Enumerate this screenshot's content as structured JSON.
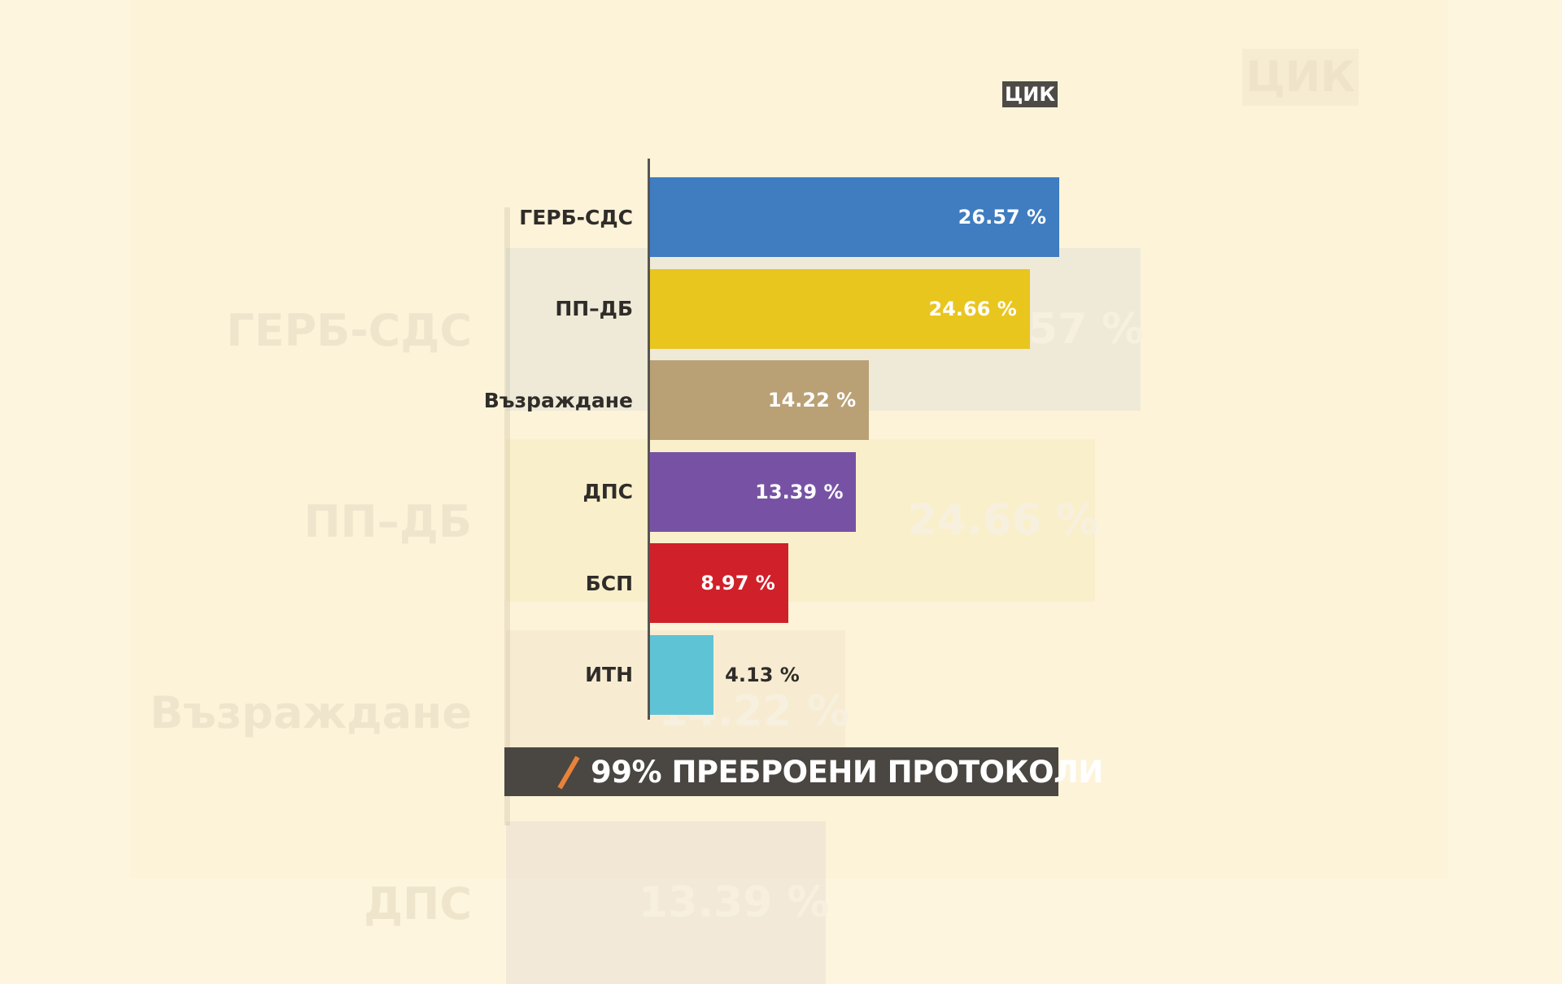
{
  "source_badge": "ЦИК",
  "footer": {
    "text": "99% ПРЕБРОЕНИ ПРОТОКОЛИ",
    "accent_color": "#e8823a"
  },
  "chart_data": {
    "type": "bar",
    "orientation": "horizontal",
    "categories": [
      "ГЕРБ-СДС",
      "ПП–ДБ",
      "Възраждане",
      "ДПС",
      "БСП",
      "ИТН"
    ],
    "values": [
      26.57,
      24.66,
      14.22,
      13.39,
      8.97,
      4.13
    ],
    "value_labels": [
      "26.57 %",
      "24.66 %",
      "14.22 %",
      "13.39 %",
      "8.97 %",
      "4.13 %"
    ],
    "colors": [
      "#3f7cc0",
      "#e8c61e",
      "#b9a175",
      "#7752a4",
      "#d0202a",
      "#5fc3d6"
    ],
    "unit": "%",
    "grid": false,
    "legend": "none"
  }
}
